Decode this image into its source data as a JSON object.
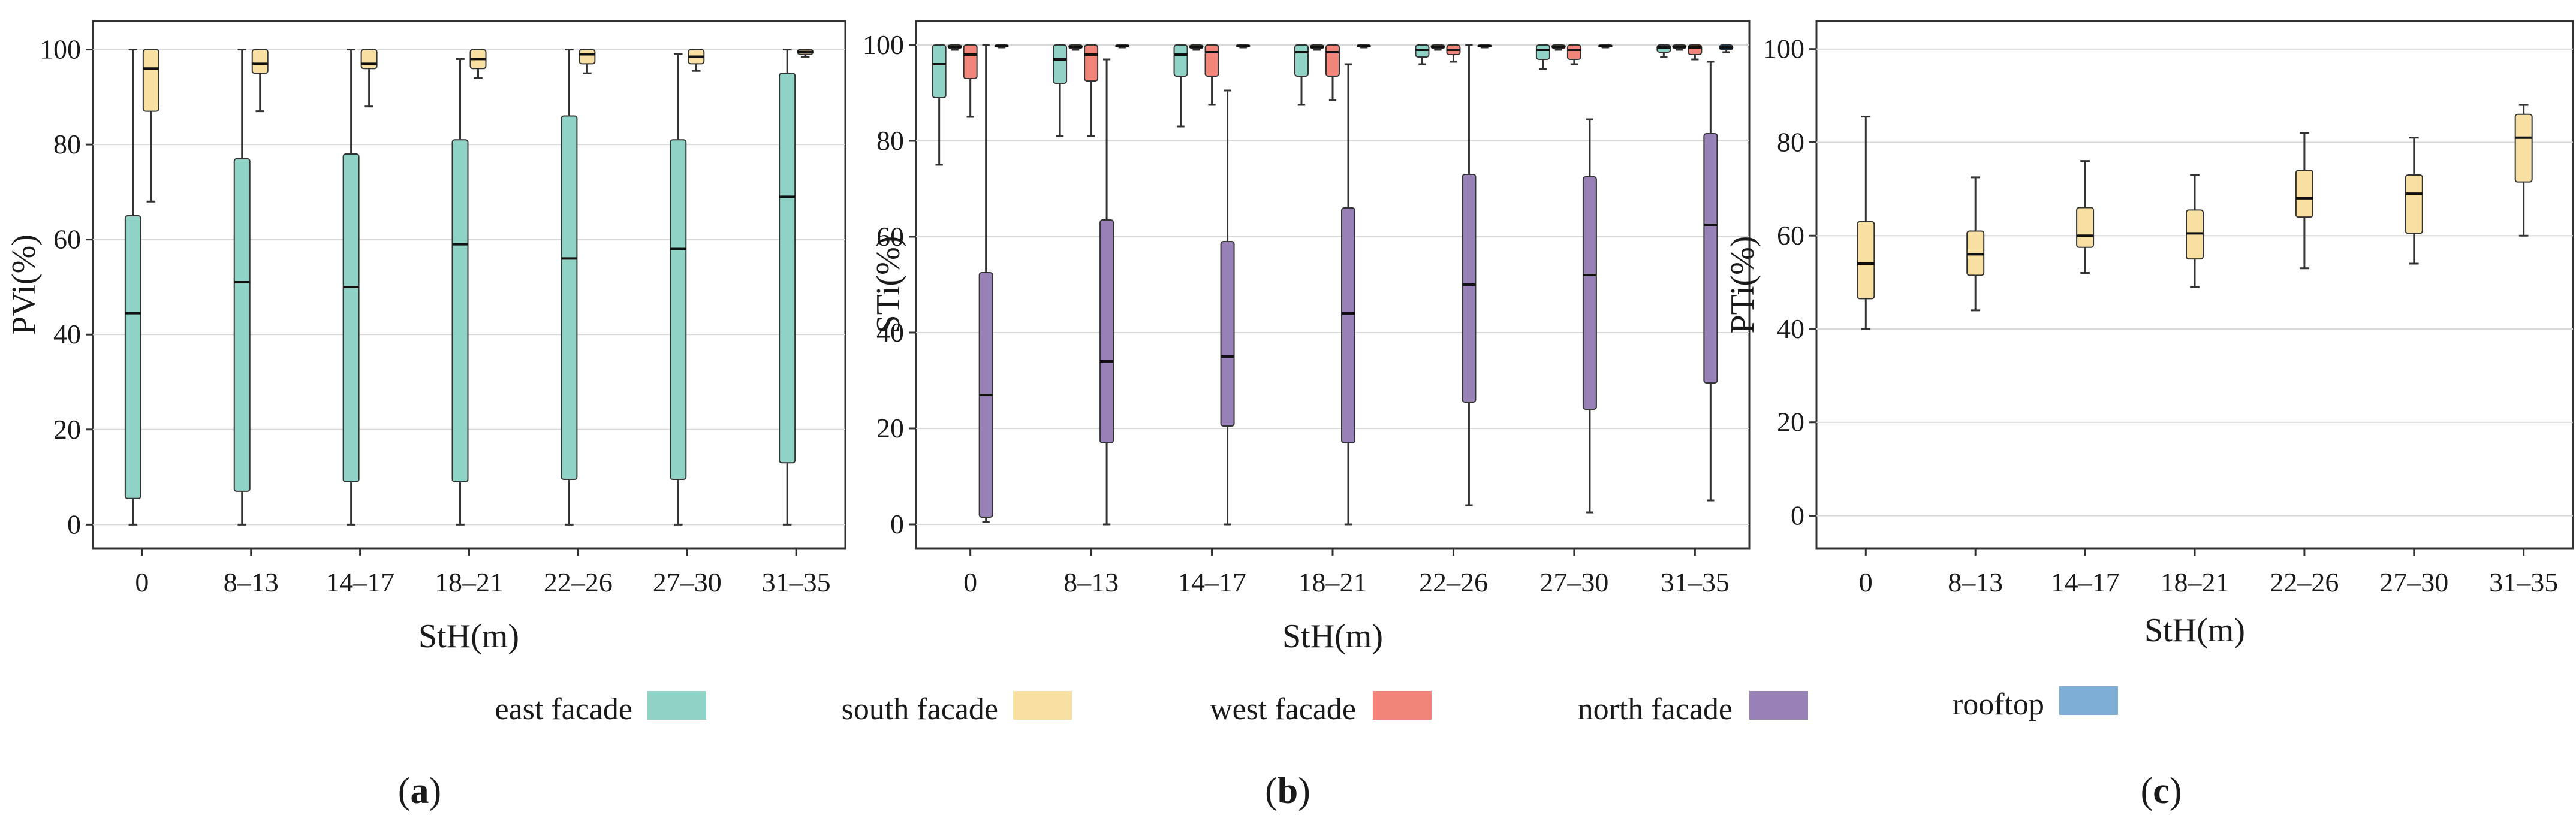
{
  "colors": {
    "east": "#8ed3c6",
    "south": "#f7e0a2",
    "west": "#f1857a",
    "north": "#9781b6",
    "rooftop": "#7eaed5",
    "grid": "#d9d9d9",
    "frame": "#333333",
    "whisker": "#333333"
  },
  "legend": {
    "items": [
      {
        "key": "east",
        "label": "east facade"
      },
      {
        "key": "south",
        "label": "south facade"
      },
      {
        "key": "west",
        "label": "west facade"
      },
      {
        "key": "north",
        "label": "north facade"
      },
      {
        "key": "rooftop",
        "label": "rooftop"
      }
    ]
  },
  "chart_data": [
    {
      "id": "a",
      "type": "box",
      "panel_label": "(a)",
      "panel_letter": "a",
      "xlabel": "StH(m)",
      "ylabel": "PVi(%)",
      "ylim": [
        -5,
        106
      ],
      "yticks": [
        0,
        20,
        40,
        60,
        80,
        100
      ],
      "grid": true,
      "categories": [
        "0",
        "8–13",
        "14–17",
        "18–21",
        "22–26",
        "27–30",
        "31–35"
      ],
      "series": [
        {
          "name": "east facade",
          "color_key": "east",
          "boxes": [
            {
              "min": 0,
              "q1": 5.5,
              "median": 44.5,
              "q3": 65,
              "max": 100
            },
            {
              "min": 0,
              "q1": 7,
              "median": 51,
              "q3": 77,
              "max": 100
            },
            {
              "min": 0,
              "q1": 9,
              "median": 50,
              "q3": 78,
              "max": 100
            },
            {
              "min": 0,
              "q1": 9,
              "median": 59,
              "q3": 81,
              "max": 98
            },
            {
              "min": 0,
              "q1": 9.5,
              "median": 56,
              "q3": 86,
              "max": 100
            },
            {
              "min": 0,
              "q1": 9.5,
              "median": 58,
              "q3": 81,
              "max": 99
            },
            {
              "min": 0,
              "q1": 13,
              "median": 69,
              "q3": 95,
              "max": 100
            }
          ]
        },
        {
          "name": "south facade",
          "color_key": "south",
          "boxes": [
            {
              "min": 68,
              "q1": 87,
              "median": 96,
              "q3": 100,
              "max": 100
            },
            {
              "min": 87,
              "q1": 95,
              "median": 97,
              "q3": 100,
              "max": 100
            },
            {
              "min": 88,
              "q1": 96,
              "median": 97,
              "q3": 100,
              "max": 100
            },
            {
              "min": 94,
              "q1": 96,
              "median": 98,
              "q3": 100,
              "max": 100
            },
            {
              "min": 95,
              "q1": 97,
              "median": 99,
              "q3": 100,
              "max": 100
            },
            {
              "min": 95.5,
              "q1": 97,
              "median": 98.5,
              "q3": 100,
              "max": 100
            },
            {
              "min": 98.5,
              "q1": 99,
              "median": 99.5,
              "q3": 100,
              "max": 100
            }
          ]
        }
      ]
    },
    {
      "id": "b",
      "type": "box",
      "panel_label": "(b)",
      "panel_letter": "b",
      "xlabel": "StH(m)",
      "ylabel": "STi(%)",
      "ylim": [
        -5,
        105
      ],
      "yticks": [
        0,
        20,
        40,
        60,
        80,
        100
      ],
      "grid": true,
      "categories": [
        "0",
        "8–13",
        "14–17",
        "18–21",
        "22–26",
        "27–30",
        "31–35"
      ],
      "series": [
        {
          "name": "east facade",
          "color_key": "east",
          "boxes": [
            {
              "min": 75,
              "q1": 89,
              "median": 96,
              "q3": 100,
              "max": 100
            },
            {
              "min": 81,
              "q1": 92,
              "median": 97,
              "q3": 100,
              "max": 100
            },
            {
              "min": 83,
              "q1": 93.5,
              "median": 98,
              "q3": 100,
              "max": 100
            },
            {
              "min": 87.5,
              "q1": 93.5,
              "median": 98.5,
              "q3": 100,
              "max": 100
            },
            {
              "min": 96,
              "q1": 97.5,
              "median": 99,
              "q3": 100,
              "max": 100
            },
            {
              "min": 95,
              "q1": 97,
              "median": 99,
              "q3": 100,
              "max": 100
            },
            {
              "min": 97.5,
              "q1": 98.5,
              "median": 99.5,
              "q3": 100,
              "max": 100
            }
          ]
        },
        {
          "name": "south facade",
          "color_key": "south",
          "boxes": [
            {
              "min": 99,
              "q1": 99.3,
              "median": 99.6,
              "q3": 100,
              "max": 100
            },
            {
              "min": 99,
              "q1": 99.3,
              "median": 99.6,
              "q3": 100,
              "max": 100
            },
            {
              "min": 99,
              "q1": 99.3,
              "median": 99.6,
              "q3": 100,
              "max": 100
            },
            {
              "min": 99,
              "q1": 99.3,
              "median": 99.6,
              "q3": 100,
              "max": 100
            },
            {
              "min": 99,
              "q1": 99.3,
              "median": 99.6,
              "q3": 100,
              "max": 100
            },
            {
              "min": 99,
              "q1": 99.3,
              "median": 99.6,
              "q3": 100,
              "max": 100
            },
            {
              "min": 99,
              "q1": 99.3,
              "median": 99.6,
              "q3": 100,
              "max": 100
            }
          ]
        },
        {
          "name": "west facade",
          "color_key": "west",
          "boxes": [
            {
              "min": 85,
              "q1": 93,
              "median": 98,
              "q3": 100,
              "max": 100
            },
            {
              "min": 81,
              "q1": 92.5,
              "median": 98,
              "q3": 100,
              "max": 100
            },
            {
              "min": 87.5,
              "q1": 93.5,
              "median": 98.5,
              "q3": 100,
              "max": 100
            },
            {
              "min": 88.5,
              "q1": 93.5,
              "median": 98.5,
              "q3": 100,
              "max": 100
            },
            {
              "min": 96.5,
              "q1": 98,
              "median": 99,
              "q3": 100,
              "max": 100
            },
            {
              "min": 96,
              "q1": 97,
              "median": 99,
              "q3": 100,
              "max": 100
            },
            {
              "min": 97,
              "q1": 98,
              "median": 99.5,
              "q3": 100,
              "max": 100
            }
          ]
        },
        {
          "name": "north facade",
          "color_key": "north",
          "boxes": [
            {
              "min": 0.5,
              "q1": 1.5,
              "median": 27,
              "q3": 52.5,
              "max": 100
            },
            {
              "min": 0,
              "q1": 17,
              "median": 34,
              "q3": 63.5,
              "max": 97
            },
            {
              "min": 0,
              "q1": 20.5,
              "median": 35,
              "q3": 59,
              "max": 90.5
            },
            {
              "min": 0,
              "q1": 17,
              "median": 44,
              "q3": 66,
              "max": 96
            },
            {
              "min": 4,
              "q1": 25.5,
              "median": 50,
              "q3": 73,
              "max": 100
            },
            {
              "min": 2.5,
              "q1": 24,
              "median": 52,
              "q3": 72.5,
              "max": 84.5
            },
            {
              "min": 5,
              "q1": 29.5,
              "median": 62.5,
              "q3": 81.5,
              "max": 96.5
            }
          ]
        },
        {
          "name": "rooftop",
          "color_key": "rooftop",
          "boxes": [
            {
              "min": 99.5,
              "q1": 99.6,
              "median": 99.8,
              "q3": 100,
              "max": 100
            },
            {
              "min": 99.5,
              "q1": 99.6,
              "median": 99.8,
              "q3": 100,
              "max": 100
            },
            {
              "min": 99.5,
              "q1": 99.6,
              "median": 99.8,
              "q3": 100,
              "max": 100
            },
            {
              "min": 99.5,
              "q1": 99.6,
              "median": 99.8,
              "q3": 100,
              "max": 100
            },
            {
              "min": 99.5,
              "q1": 99.6,
              "median": 99.8,
              "q3": 100,
              "max": 100
            },
            {
              "min": 99.5,
              "q1": 99.6,
              "median": 99.8,
              "q3": 100,
              "max": 100
            },
            {
              "min": 98.5,
              "q1": 99,
              "median": 99.5,
              "q3": 100,
              "max": 100
            }
          ]
        }
      ]
    },
    {
      "id": "c",
      "type": "box",
      "panel_label": "(c)",
      "panel_letter": "c",
      "xlabel": "StH(m)",
      "ylabel": "PTi(%)",
      "ylim": [
        -7,
        106
      ],
      "yticks": [
        0,
        20,
        40,
        60,
        80,
        100
      ],
      "grid": true,
      "categories": [
        "0",
        "8–13",
        "14–17",
        "18–21",
        "22–26",
        "27–30",
        "31–35"
      ],
      "series": [
        {
          "name": "south facade",
          "color_key": "south",
          "boxes": [
            {
              "min": 40,
              "q1": 46.5,
              "median": 54,
              "q3": 63,
              "max": 85.5
            },
            {
              "min": 44,
              "q1": 51.5,
              "median": 56,
              "q3": 61,
              "max": 72.5
            },
            {
              "min": 52,
              "q1": 57.5,
              "median": 60,
              "q3": 66,
              "max": 76
            },
            {
              "min": 49,
              "q1": 55,
              "median": 60.5,
              "q3": 65.5,
              "max": 73
            },
            {
              "min": 53,
              "q1": 64,
              "median": 68,
              "q3": 74,
              "max": 82
            },
            {
              "min": 54,
              "q1": 60.5,
              "median": 69,
              "q3": 73,
              "max": 81
            },
            {
              "min": 60,
              "q1": 71.5,
              "median": 81,
              "q3": 86,
              "max": 88
            }
          ]
        }
      ]
    }
  ]
}
